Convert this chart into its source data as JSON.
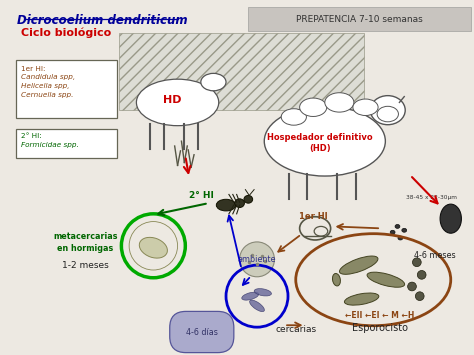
{
  "title": "Dicrocoelium dendriticum",
  "subtitle": "Ciclo biológico",
  "prepatencia": "PREPATENCIA 7-10 semanas",
  "bg_color": "#ede9e2",
  "prepatencia_box_color": "#c8c4bf",
  "title_color": "#000099",
  "subtitle_color": "#cc0000",
  "text_red": "#cc0000",
  "text_green": "#006600",
  "text_brown": "#8B4513",
  "text_blue_label": "#333388",
  "text_dark": "#222222",
  "box1_label_head": "1er HI:",
  "box1_label_body": "Candidula spp,\nHelicella spp,\nCernuella spp.",
  "box2_label_head": "2° HI:",
  "box2_label_body": "Formicidae spp.",
  "hd_label": "HD",
  "hd_label2": "Hospedador definitivo\n(HD)",
  "label_2hi": "2° HI",
  "label_ambiente": "ambiente",
  "label_metacercarias": "metacercarias\nen hormigas",
  "label_1_2meses": "1-2 meses",
  "label_cercarias": "cercarias",
  "label_4_6dias": "4-6 días",
  "label_1er_hi": "1er HI",
  "label_4_6meses": "4-6 meses",
  "label_esporocisto": "Esporocisto",
  "label_eii_ei_m_h": "←EII ←EI ← M ←H",
  "label_38_45": "38-45 x 22-30µm"
}
